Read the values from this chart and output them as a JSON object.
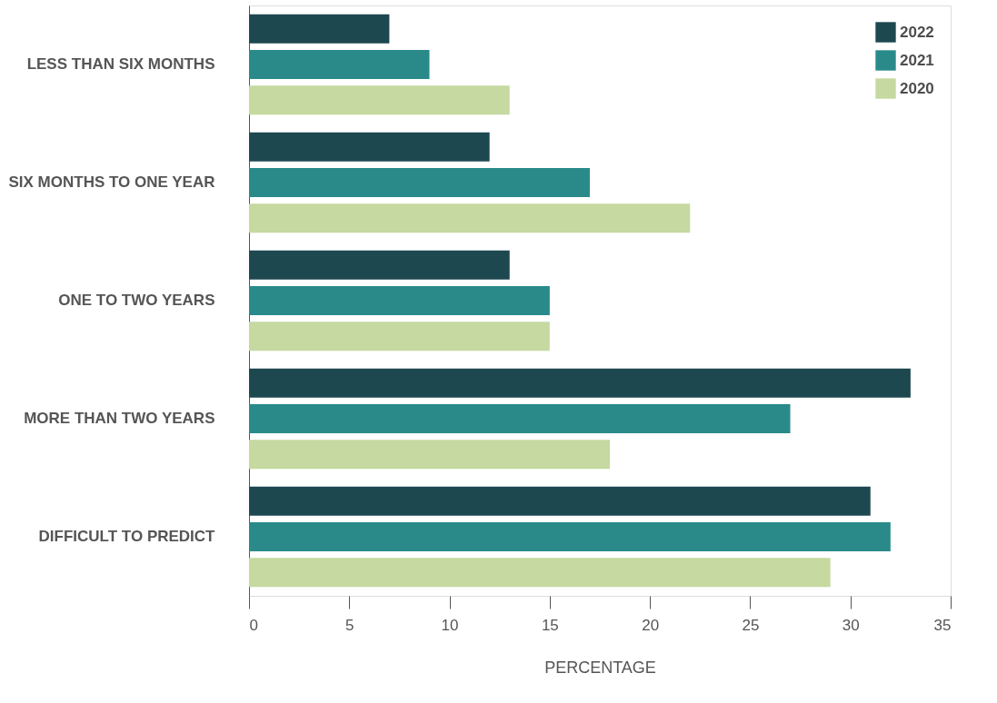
{
  "chart_data": {
    "type": "bar",
    "orientation": "horizontal",
    "xlabel": "PERCENTAGE",
    "categories": [
      "LESS THAN SIX MONTHS",
      "SIX MONTHS TO ONE YEAR",
      "ONE TO TWO YEARS",
      "MORE THAN TWO YEARS",
      "DIFFICULT TO PREDICT"
    ],
    "series": [
      {
        "name": "2022",
        "color": "#1e4850",
        "values": [
          7,
          12,
          13,
          33,
          31
        ]
      },
      {
        "name": "2021",
        "color": "#2a8a8a",
        "values": [
          9,
          17,
          15,
          27,
          32
        ]
      },
      {
        "name": "2020",
        "color": "#c5d9a0",
        "values": [
          13,
          22,
          15,
          18,
          29
        ]
      }
    ],
    "xlim": [
      0,
      35
    ],
    "xticks": [
      0,
      5,
      10,
      15,
      20,
      25,
      30,
      35
    ],
    "grid": false,
    "legend": "top right"
  }
}
